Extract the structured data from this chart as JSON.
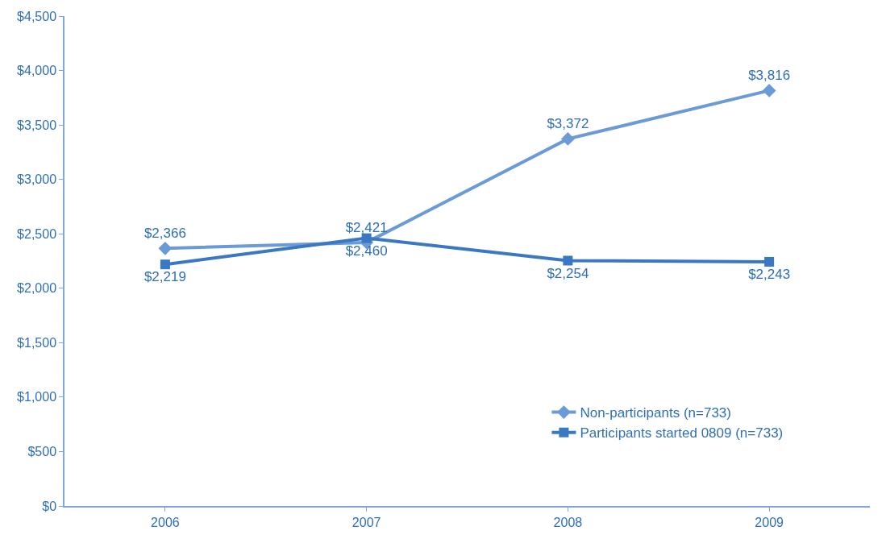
{
  "chart_data": {
    "type": "line",
    "categories": [
      "2006",
      "2007",
      "2008",
      "2009"
    ],
    "series": [
      {
        "name": "Non-participants (n=733)",
        "color": "#6b9bd6",
        "marker": "diamond",
        "values": [
          2366,
          2421,
          3372,
          3816
        ],
        "value_labels": [
          "$2,366",
          "$2,421",
          "$3,372",
          "$3,816"
        ]
      },
      {
        "name": "Participants started 0809 (n=733)",
        "color": "#3a78c4",
        "marker": "square",
        "values": [
          2219,
          2460,
          2254,
          2243
        ],
        "value_labels": [
          "$2,219",
          "$2,460",
          "$2,254",
          "$2,243"
        ]
      }
    ],
    "ylim": [
      0,
      4500
    ],
    "yticks": [
      {
        "value": 0,
        "label": "$0"
      },
      {
        "value": 500,
        "label": "$500"
      },
      {
        "value": 1000,
        "label": "$1,000"
      },
      {
        "value": 1500,
        "label": "$1,500"
      },
      {
        "value": 2000,
        "label": "$2,000"
      },
      {
        "value": 2500,
        "label": "$2,500"
      },
      {
        "value": 3000,
        "label": "$3,000"
      },
      {
        "value": 3500,
        "label": "$3,500"
      },
      {
        "value": 4000,
        "label": "$4,000"
      },
      {
        "value": 4500,
        "label": "$4,500"
      }
    ],
    "legend": "bottom right",
    "line_style": "solid"
  }
}
